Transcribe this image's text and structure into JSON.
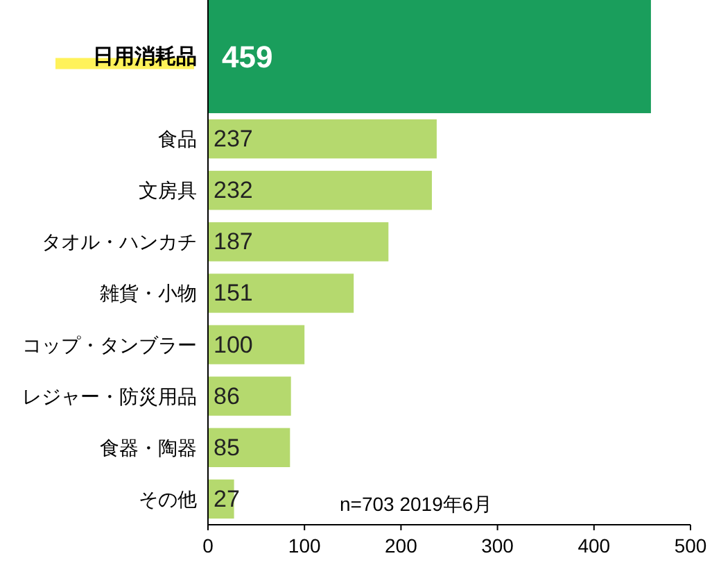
{
  "chart_data": {
    "type": "bar",
    "orientation": "horizontal",
    "categories": [
      "日用消耗品",
      "食品",
      "文房具",
      "タオル・ハンカチ",
      "雑貨・小物",
      "コップ・タンブラー",
      "レジャー・防災用品",
      "食器・陶器",
      "その他"
    ],
    "values": [
      459,
      237,
      232,
      187,
      151,
      100,
      86,
      85,
      27
    ],
    "colors": [
      "#1a9e5c",
      "#b5d96e",
      "#b5d96e",
      "#b5d96e",
      "#b5d96e",
      "#b5d96e",
      "#b5d96e",
      "#b5d96e",
      "#b5d96e"
    ],
    "xlim": [
      0,
      500
    ],
    "xticks": [
      0,
      100,
      200,
      300,
      400,
      500
    ],
    "data_labels": true,
    "grid": false,
    "annotations": [
      "n=703 2019年6月"
    ]
  }
}
